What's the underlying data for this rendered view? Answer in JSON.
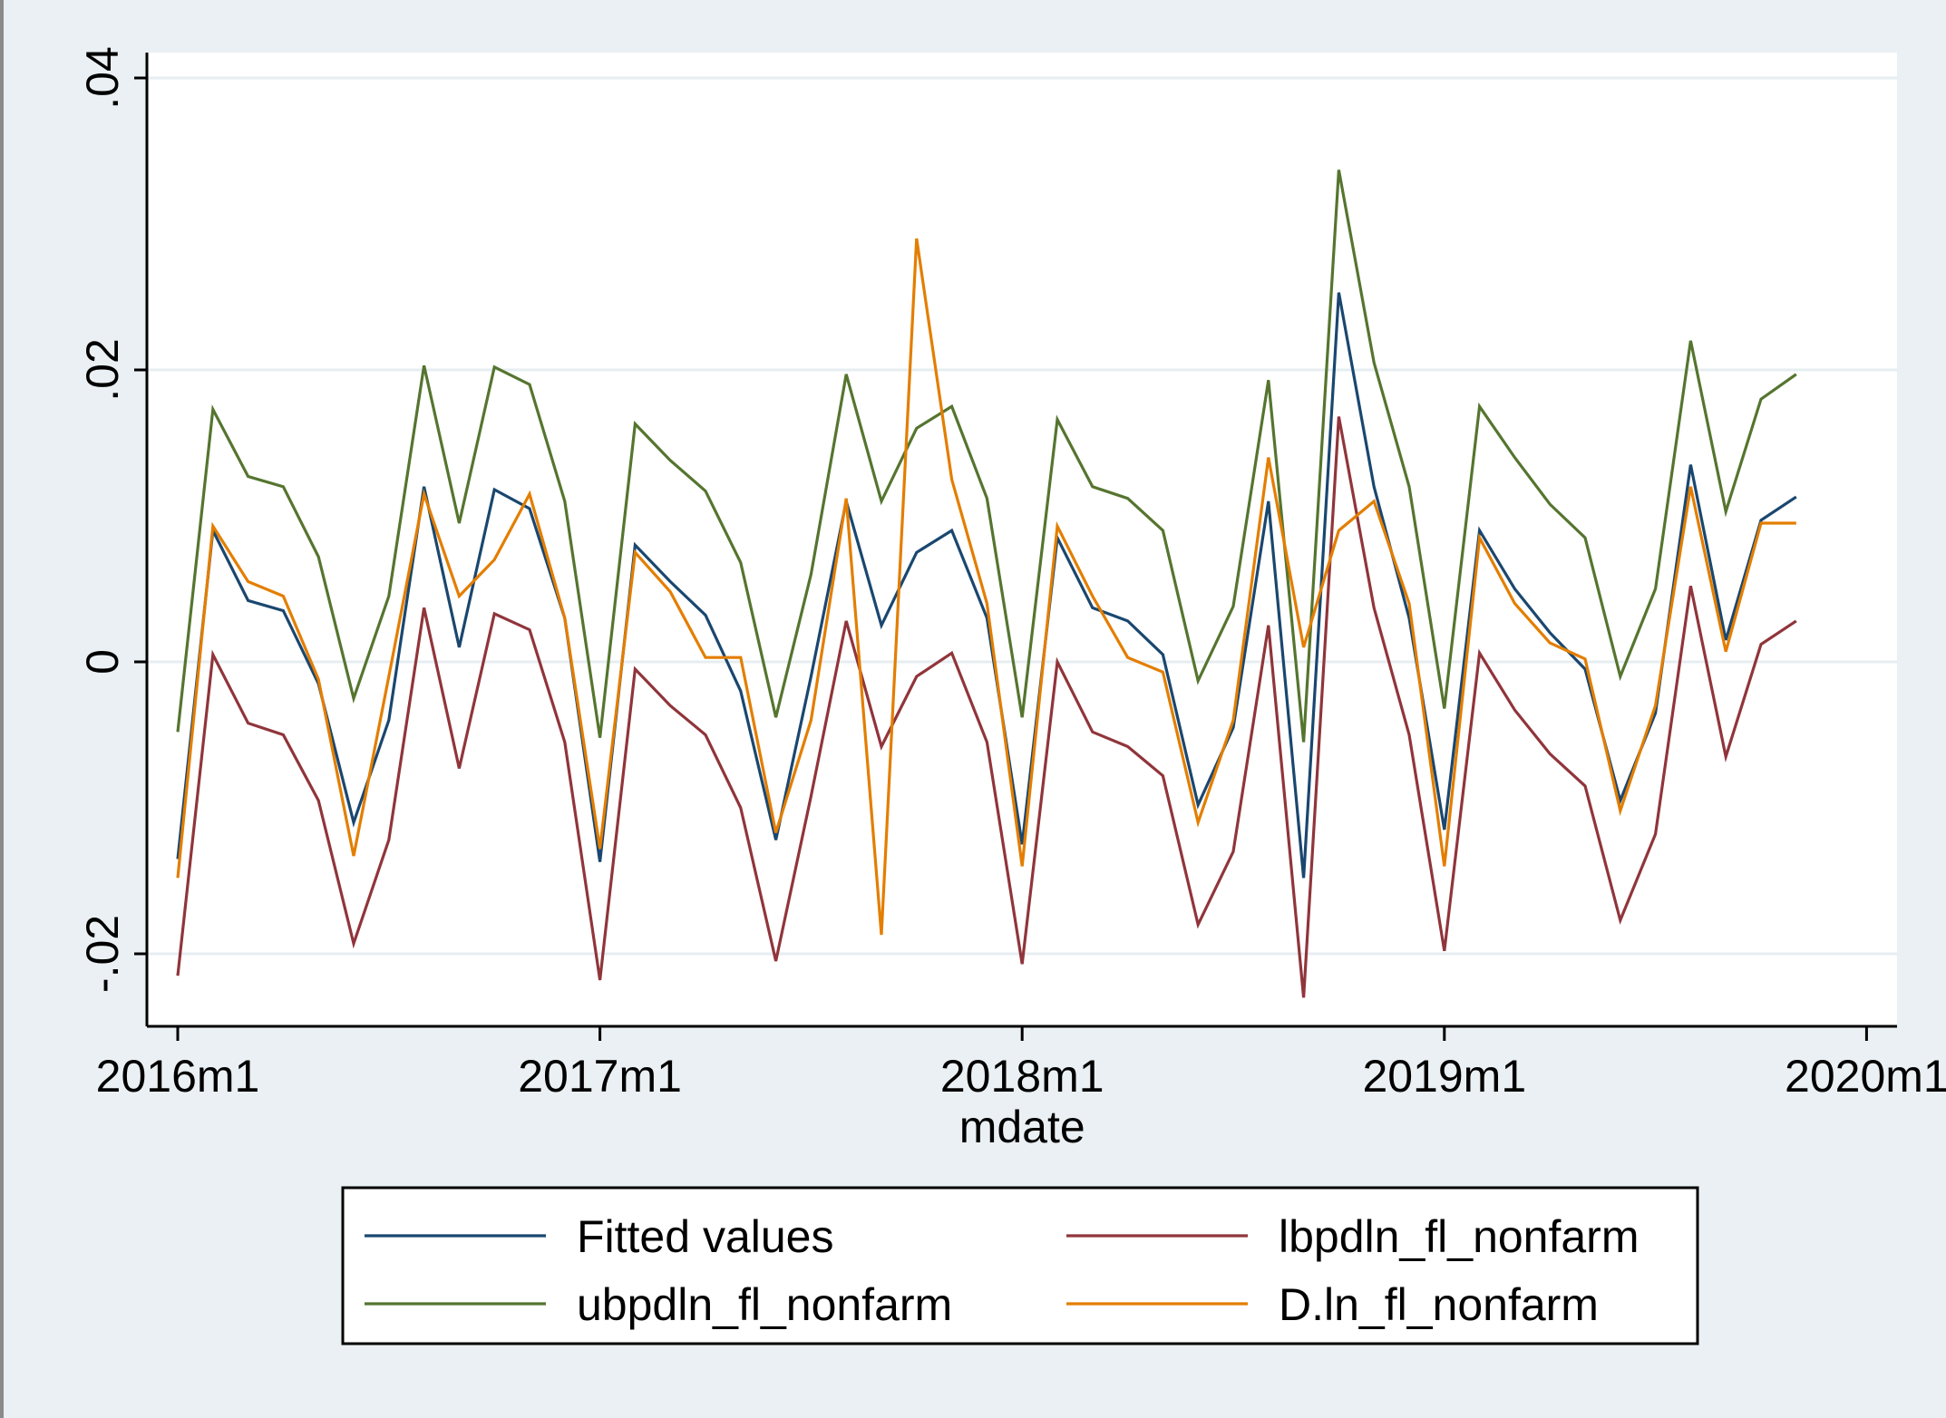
{
  "chart_data": {
    "type": "line",
    "title": "",
    "xlabel": "mdate",
    "ylabel": "",
    "x_ticks": [
      "2016m1",
      "2017m1",
      "2018m1",
      "2019m1",
      "2020m1"
    ],
    "y_ticks": [
      "-.02",
      "0",
      ".02",
      ".04"
    ],
    "y_tick_values": [
      -0.02,
      0,
      0.02,
      0.04
    ],
    "ylim": [
      -0.0249,
      0.0418
    ],
    "xlim": [
      "2015m12",
      "2020m1"
    ],
    "grid": true,
    "legend_position": "bottom",
    "x": [
      "2016m1",
      "2016m2",
      "2016m3",
      "2016m4",
      "2016m5",
      "2016m6",
      "2016m7",
      "2016m8",
      "2016m9",
      "2016m10",
      "2016m11",
      "2016m12",
      "2017m1",
      "2017m2",
      "2017m3",
      "2017m4",
      "2017m5",
      "2017m6",
      "2017m7",
      "2017m8",
      "2017m9",
      "2017m10",
      "2017m11",
      "2017m12",
      "2018m1",
      "2018m2",
      "2018m3",
      "2018m4",
      "2018m5",
      "2018m6",
      "2018m7",
      "2018m8",
      "2018m9",
      "2018m10",
      "2018m11",
      "2018m12",
      "2019m1",
      "2019m2",
      "2019m3",
      "2019m4",
      "2019m5",
      "2019m6",
      "2019m7",
      "2019m8",
      "2019m9",
      "2019m10",
      "2019m11"
    ],
    "series": [
      {
        "name": "Fitted values",
        "color": "#1a476f",
        "values": [
          -0.0135,
          0.009,
          0.0042,
          0.0035,
          -0.0015,
          -0.011,
          -0.004,
          0.012,
          0.001,
          0.0118,
          0.0105,
          0.003,
          -0.0137,
          0.008,
          0.0055,
          0.0032,
          -0.002,
          -0.0122,
          -0.001,
          0.011,
          0.0025,
          0.0075,
          0.009,
          0.003,
          -0.0125,
          0.0085,
          0.0037,
          0.0028,
          0.0005,
          -0.0098,
          -0.0045,
          0.011,
          -0.0148,
          0.0253,
          0.012,
          0.003,
          -0.0115,
          0.009,
          0.005,
          0.002,
          -0.0005,
          -0.0095,
          -0.0035,
          0.0135,
          0.0015,
          0.0097,
          0.0113
        ]
      },
      {
        "name": "lbpdln_fl_nonfarm",
        "color": "#90353b",
        "values": [
          -0.0215,
          0.0005,
          -0.0042,
          -0.005,
          -0.0095,
          -0.0193,
          -0.0122,
          0.0037,
          -0.0073,
          0.0033,
          0.0022,
          -0.0055,
          -0.0218,
          -0.0005,
          -0.003,
          -0.005,
          -0.01,
          -0.0205,
          -0.0092,
          0.0028,
          -0.0058,
          -0.001,
          0.0006,
          -0.0055,
          -0.0207,
          0.0,
          -0.0048,
          -0.0058,
          -0.0078,
          -0.018,
          -0.013,
          0.0025,
          -0.023,
          0.0168,
          0.0037,
          -0.005,
          -0.0198,
          0.0006,
          -0.0033,
          -0.0063,
          -0.0085,
          -0.0177,
          -0.0118,
          0.0052,
          -0.0065,
          0.0012,
          0.0028
        ]
      },
      {
        "name": "ubpdln_fl_nonfarm",
        "color": "#55752f",
        "values": [
          -0.0048,
          0.0173,
          0.0127,
          0.012,
          0.0072,
          -0.0025,
          0.0045,
          0.0203,
          0.0095,
          0.0202,
          0.019,
          0.011,
          -0.0052,
          0.0163,
          0.0138,
          0.0117,
          0.0068,
          -0.0038,
          0.006,
          0.0197,
          0.011,
          0.016,
          0.0175,
          0.0112,
          -0.0038,
          0.0166,
          0.012,
          0.0112,
          0.009,
          -0.0013,
          0.0038,
          0.0193,
          -0.0055,
          0.0337,
          0.0205,
          0.012,
          -0.0032,
          0.0175,
          0.014,
          0.0108,
          0.0085,
          -0.001,
          0.005,
          0.022,
          0.0103,
          0.018,
          0.0197
        ]
      },
      {
        "name": "D.ln_fl_nonfarm",
        "color": "#e37e00",
        "values": [
          -0.0148,
          0.0093,
          0.0055,
          0.0045,
          -0.0012,
          -0.0133,
          -0.001,
          0.0115,
          0.0045,
          0.007,
          0.0115,
          0.003,
          -0.0128,
          0.0075,
          0.0048,
          0.0003,
          0.0003,
          -0.0117,
          -0.004,
          0.0112,
          -0.0187,
          0.029,
          0.0125,
          0.004,
          -0.014,
          0.0093,
          0.0045,
          0.0003,
          -0.0007,
          -0.011,
          -0.004,
          0.014,
          0.001,
          0.009,
          0.011,
          0.004,
          -0.014,
          0.0085,
          0.004,
          0.0013,
          0.0002,
          -0.0102,
          -0.003,
          0.012,
          0.0007,
          0.0095,
          0.0095
        ]
      }
    ],
    "legend_order": [
      0,
      1,
      2,
      3
    ]
  }
}
